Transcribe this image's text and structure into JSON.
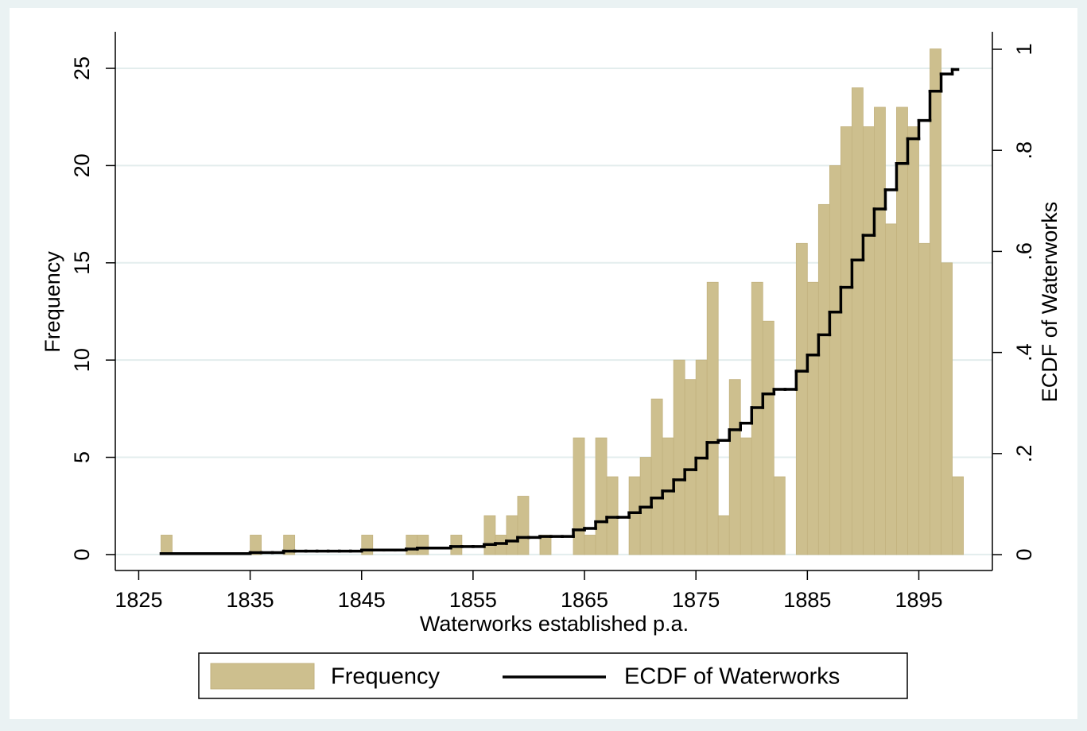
{
  "chart_data": {
    "type": "histogram",
    "x_label": "Waterworks established p.a.",
    "y_label": "Frequency",
    "y2_label": "ECDF of Waterworks",
    "bins": [
      1827,
      1828,
      1829,
      1830,
      1831,
      1832,
      1833,
      1834,
      1835,
      1836,
      1837,
      1838,
      1839,
      1840,
      1841,
      1842,
      1843,
      1844,
      1845,
      1846,
      1847,
      1848,
      1849,
      1850,
      1851,
      1852,
      1853,
      1854,
      1855,
      1856,
      1857,
      1858,
      1859,
      1860,
      1861,
      1862,
      1863,
      1864,
      1865,
      1866,
      1867,
      1868,
      1869,
      1870,
      1871,
      1872,
      1873,
      1874,
      1875,
      1876,
      1877,
      1878,
      1879,
      1880,
      1881,
      1882,
      1883,
      1884,
      1885,
      1886,
      1887,
      1888,
      1889,
      1890,
      1891,
      1892,
      1893,
      1894,
      1895,
      1896,
      1897,
      1898,
      1899
    ],
    "series": [
      {
        "name": "Frequency",
        "color": "#cdbf8e",
        "values": [
          1,
          0,
          0,
          0,
          0,
          0,
          0,
          0,
          1,
          0,
          0,
          1,
          0,
          0,
          0,
          0,
          0,
          0,
          1,
          0,
          0,
          0,
          1,
          1,
          0,
          0,
          1,
          0,
          0,
          2,
          1,
          2,
          3,
          0,
          1,
          0,
          0,
          6,
          1,
          6,
          4,
          0,
          4,
          5,
          8,
          6,
          10,
          9,
          10,
          14,
          2,
          9,
          6,
          14,
          12,
          4,
          0,
          16,
          14,
          18,
          20,
          22,
          24,
          22,
          23,
          17,
          23,
          22,
          16,
          26,
          15,
          4
        ]
      },
      {
        "name": "ECDF of Waterworks",
        "color": "#000000",
        "axis": "y2",
        "x": [
          1827,
          1828,
          1829,
          1830,
          1831,
          1832,
          1833,
          1834,
          1835,
          1836,
          1837,
          1838,
          1839,
          1840,
          1841,
          1842,
          1843,
          1844,
          1845,
          1846,
          1847,
          1848,
          1849,
          1850,
          1851,
          1852,
          1853,
          1854,
          1855,
          1856,
          1857,
          1858,
          1859,
          1860,
          1861,
          1862,
          1863,
          1864,
          1865,
          1866,
          1867,
          1868,
          1869,
          1870,
          1871,
          1872,
          1873,
          1874,
          1875,
          1876,
          1877,
          1878,
          1879,
          1880,
          1881,
          1882,
          1883,
          1884,
          1885,
          1886,
          1887,
          1888,
          1889,
          1890,
          1891,
          1892,
          1893,
          1894,
          1895,
          1896,
          1897,
          1898
        ],
        "values": [
          0.002,
          0.002,
          0.002,
          0.002,
          0.002,
          0.002,
          0.002,
          0.002,
          0.004,
          0.004,
          0.004,
          0.007,
          0.007,
          0.007,
          0.007,
          0.007,
          0.007,
          0.007,
          0.009,
          0.009,
          0.009,
          0.009,
          0.011,
          0.013,
          0.013,
          0.013,
          0.016,
          0.016,
          0.016,
          0.02,
          0.022,
          0.027,
          0.034,
          0.034,
          0.036,
          0.036,
          0.036,
          0.049,
          0.052,
          0.065,
          0.074,
          0.074,
          0.083,
          0.094,
          0.112,
          0.126,
          0.148,
          0.168,
          0.191,
          0.222,
          0.226,
          0.247,
          0.26,
          0.291,
          0.318,
          0.327,
          0.327,
          0.363,
          0.395,
          0.435,
          0.48,
          0.529,
          0.583,
          0.632,
          0.684,
          0.722,
          0.774,
          0.823,
          0.859,
          0.917,
          0.951,
          0.96
        ]
      }
    ],
    "xlim": [
      1822.9,
      1901.6
    ],
    "xticks": [
      1825,
      1835,
      1845,
      1855,
      1865,
      1875,
      1885,
      1895
    ],
    "ylim": [
      -0.82,
      26.88
    ],
    "yticks": [
      0,
      5,
      10,
      15,
      20,
      25
    ],
    "y2lim": [
      -0.0314,
      1.0346
    ],
    "y2ticks": [
      0,
      {
        "value": 0.2,
        "label": ".2"
      },
      {
        "value": 0.4,
        "label": ".4"
      },
      {
        "value": 0.6,
        "label": ".6"
      },
      {
        "value": 0.8,
        "label": ".8"
      },
      1
    ],
    "grid": true,
    "legend": "bottom"
  }
}
